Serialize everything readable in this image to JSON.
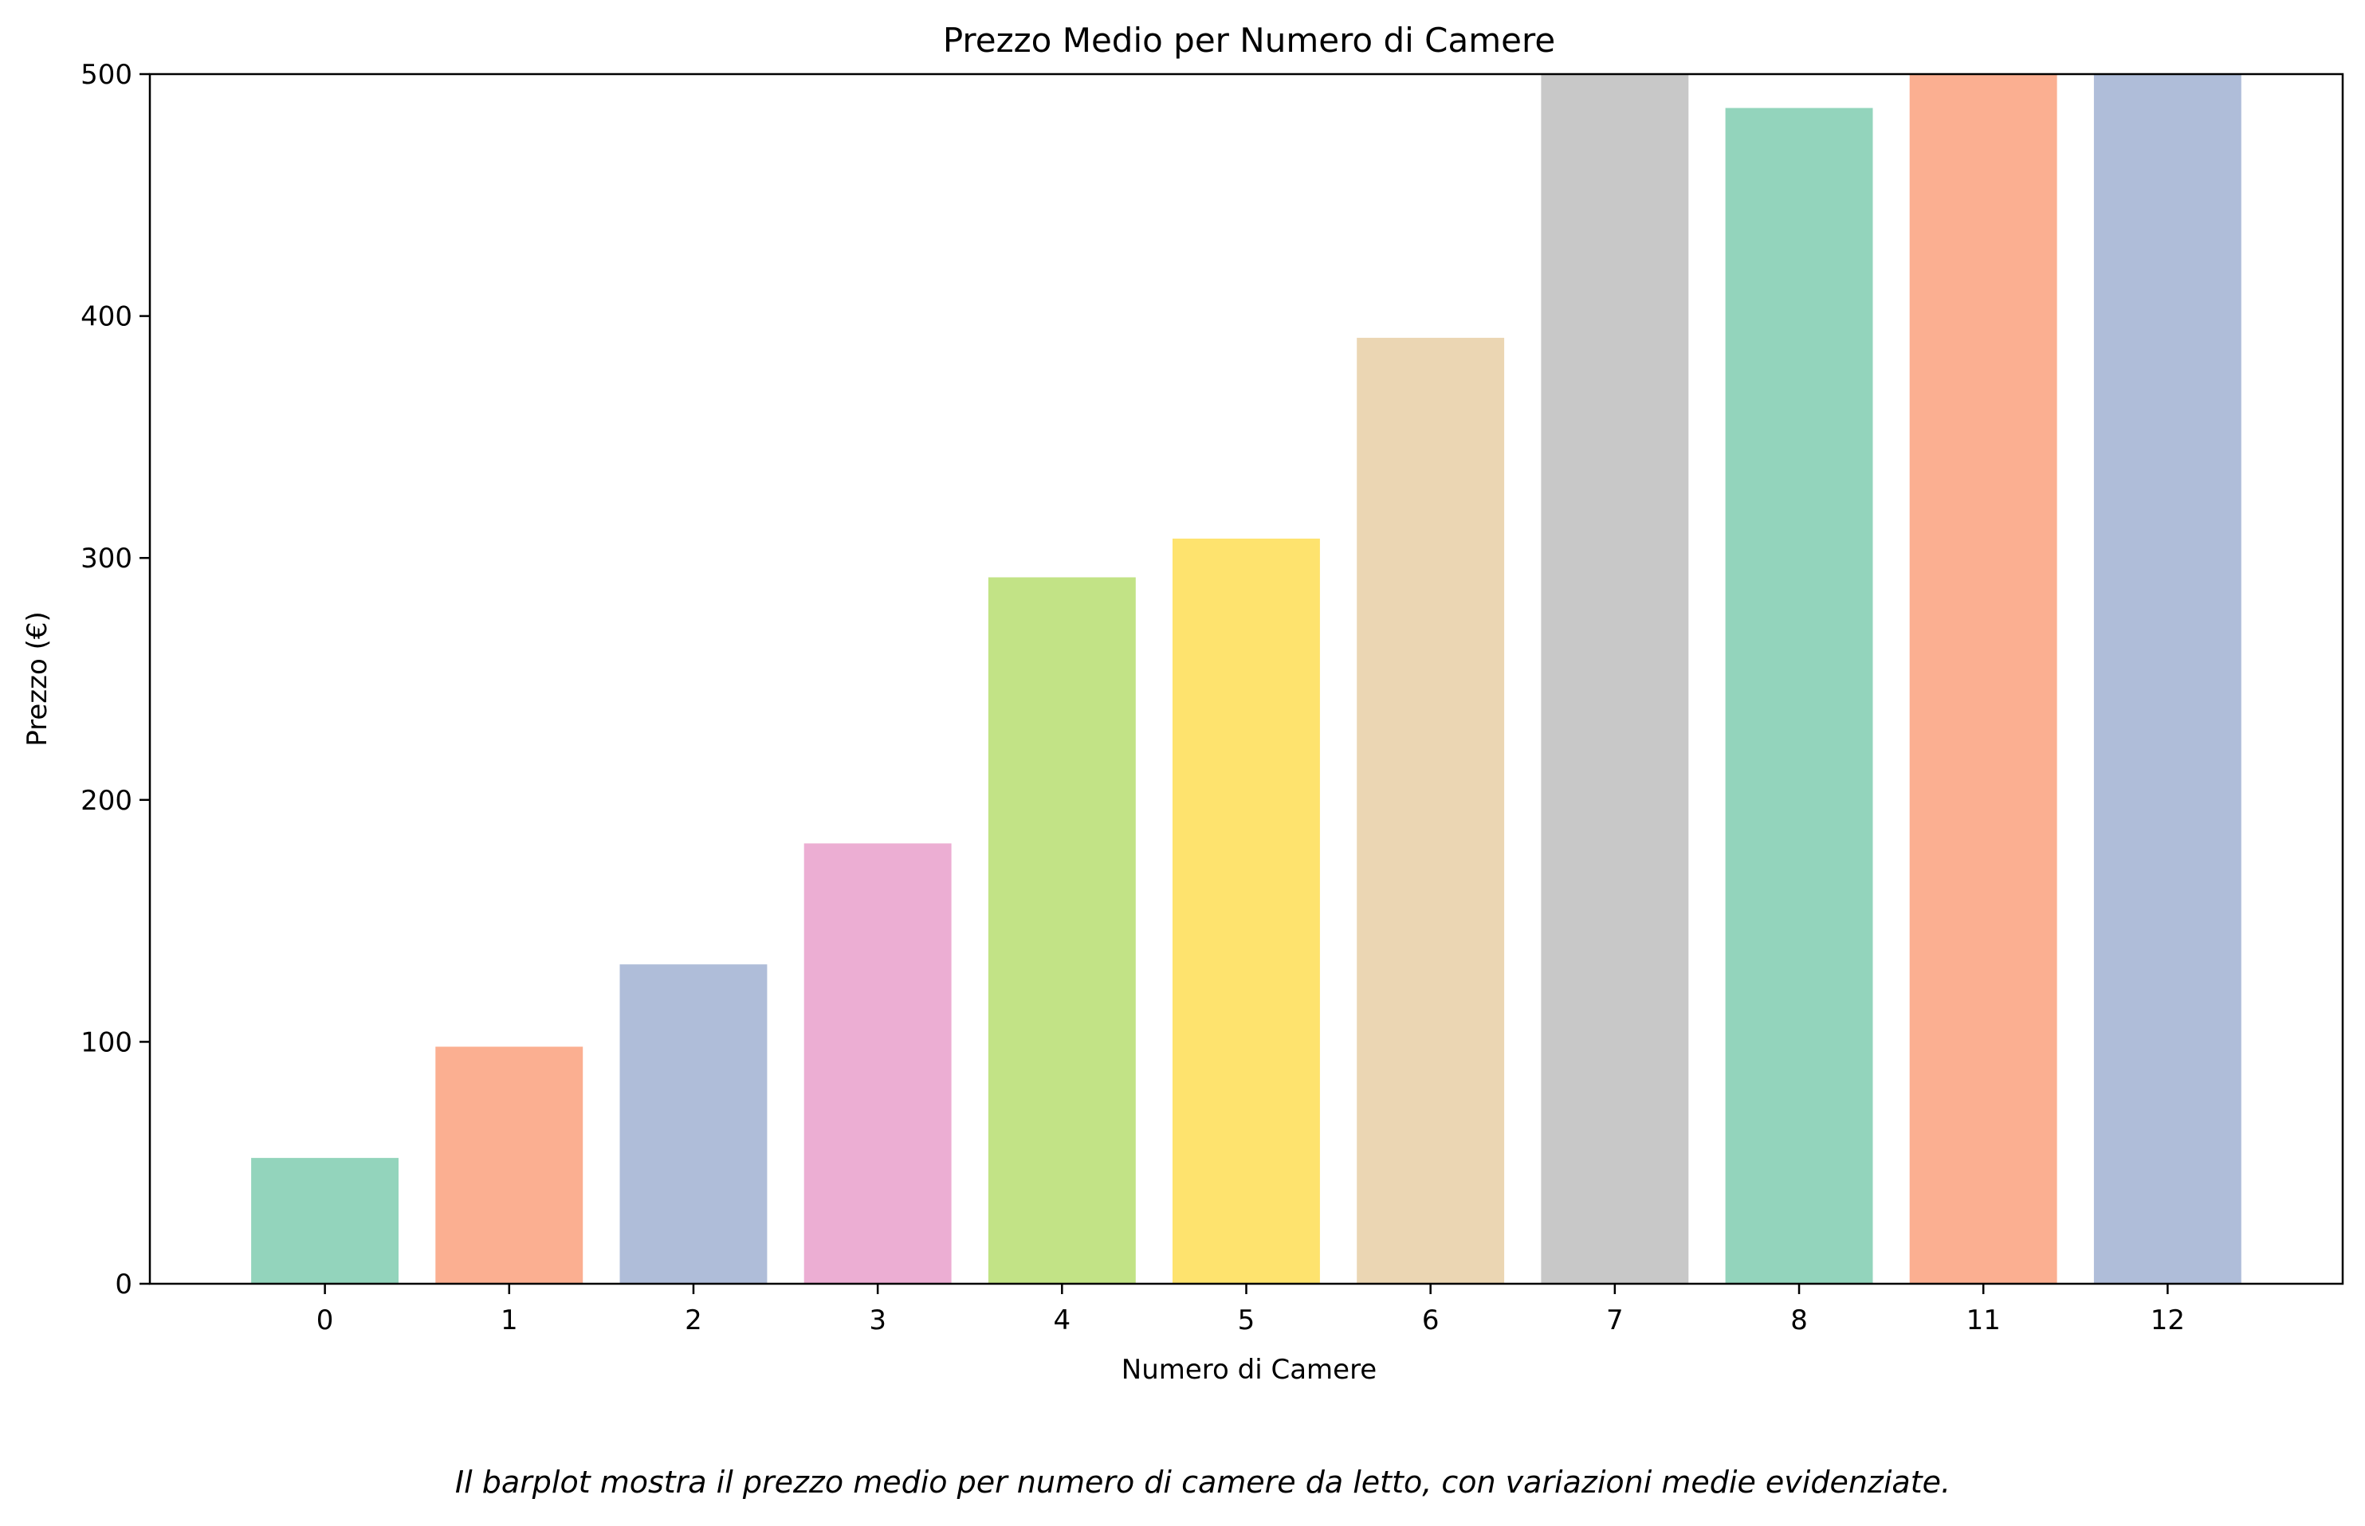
{
  "chart_data": {
    "type": "bar",
    "title": "Prezzo Medio per Numero di Camere",
    "xlabel": "Numero di Camere",
    "ylabel": "Prezzo (€)",
    "categories": [
      "0",
      "1",
      "2",
      "3",
      "4",
      "5",
      "6",
      "7",
      "8",
      "11",
      "12"
    ],
    "values": [
      52,
      98,
      132,
      182,
      292,
      308,
      391,
      500,
      486,
      500,
      500
    ],
    "colors": [
      "#93d4bc",
      "#fbaf91",
      "#afbdd9",
      "#ecaed3",
      "#c2e386",
      "#fee36e",
      "#ebd6b3",
      "#c8c8c8",
      "#93d4bc",
      "#fbaf91",
      "#afbdd9"
    ],
    "ylim": [
      0,
      500
    ],
    "yticks": [
      0,
      100,
      200,
      300,
      400,
      500
    ],
    "grid": false,
    "legend": "none"
  },
  "caption": "Il barplot mostra il prezzo medio per numero di camere da letto, con variazioni medie evidenziate."
}
